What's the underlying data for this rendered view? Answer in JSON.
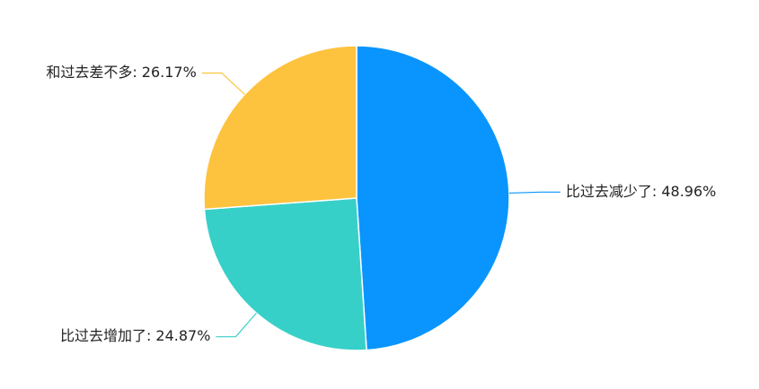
{
  "chart_data": {
    "type": "pie",
    "labels": [
      "比过去减少了: 48.96%",
      "比过去增加了: 24.87%",
      "和过去差不多: 26.17%"
    ],
    "values": [
      48.96,
      24.87,
      26.17
    ],
    "colors": [
      "#0995fd",
      "#37d0c8",
      "#fdc33e"
    ]
  }
}
